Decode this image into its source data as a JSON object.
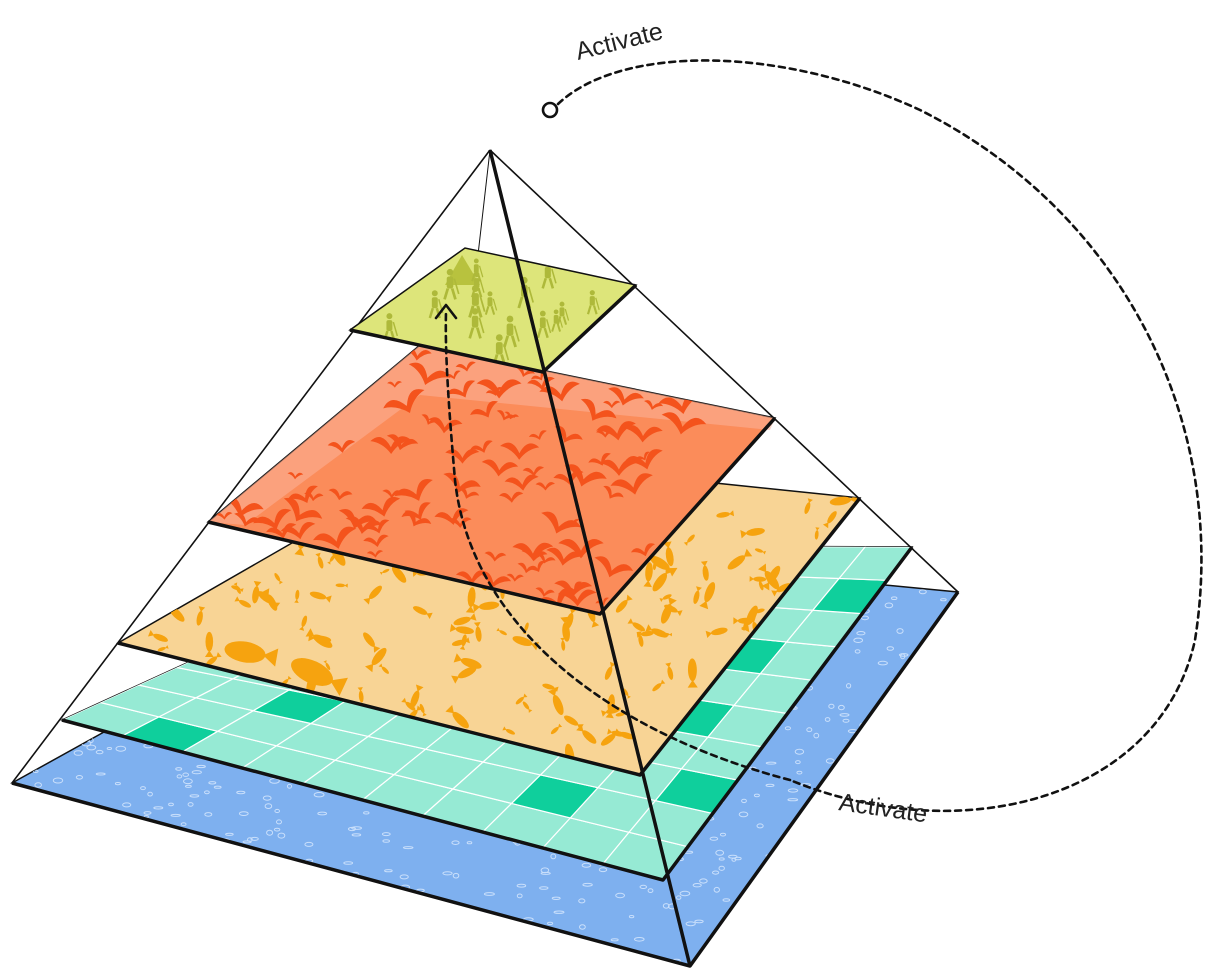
{
  "diagram": {
    "labels": {
      "top_activate": "Activate",
      "bottom_activate": "Activate"
    },
    "layers": [
      {
        "name": "water",
        "fill": "#7eb0ef",
        "accent": "#c9dffb",
        "icon": "water-texture"
      },
      {
        "name": "grid",
        "fill": "#96ead4",
        "accent": "#0fcf9c",
        "icon": "grid-cells"
      },
      {
        "name": "fish",
        "fill": "#f8d495",
        "accent": "#f6a30f",
        "icon": "fish"
      },
      {
        "name": "birds",
        "fill": "#fb8c5a",
        "accent": "#f4531c",
        "icon": "bird"
      },
      {
        "name": "humans",
        "fill": "#dde57a",
        "accent": "#aeb93a",
        "icon": "hiker"
      }
    ]
  }
}
